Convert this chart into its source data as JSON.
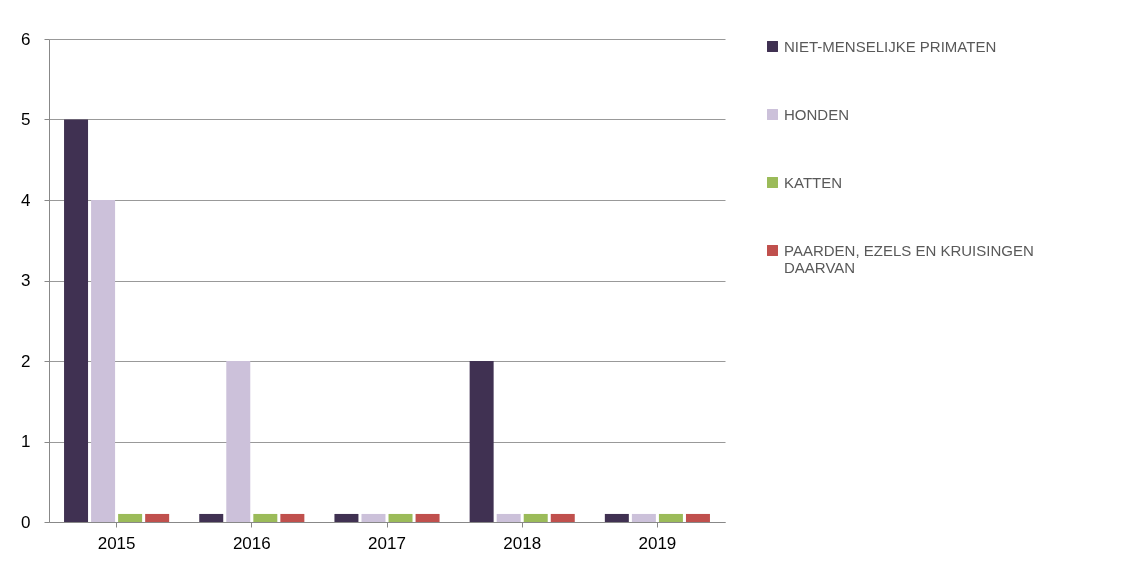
{
  "chart_data": {
    "type": "bar",
    "categories": [
      "2015",
      "2016",
      "2017",
      "2018",
      "2019"
    ],
    "series": [
      {
        "name": "NIET-MENSELIJKE PRIMATEN",
        "color": "#403152",
        "values": [
          5,
          0.1,
          0.1,
          2,
          0.1
        ]
      },
      {
        "name": "HONDEN",
        "color": "#ccc1da",
        "values": [
          4,
          2,
          0.1,
          0.1,
          0.1
        ]
      },
      {
        "name": "KATTEN",
        "color": "#9bbb59",
        "values": [
          0.1,
          0.1,
          0.1,
          0.1,
          0.1
        ]
      },
      {
        "name": "PAARDEN, EZELS EN KRUISINGEN DAARVAN",
        "color": "#c0504d",
        "values": [
          0.1,
          0.1,
          0.1,
          0.1,
          0.1
        ]
      }
    ],
    "ylim": [
      0,
      6
    ],
    "yticks": [
      0,
      1,
      2,
      3,
      4,
      5,
      6
    ],
    "grid": "y",
    "legend": "right"
  }
}
